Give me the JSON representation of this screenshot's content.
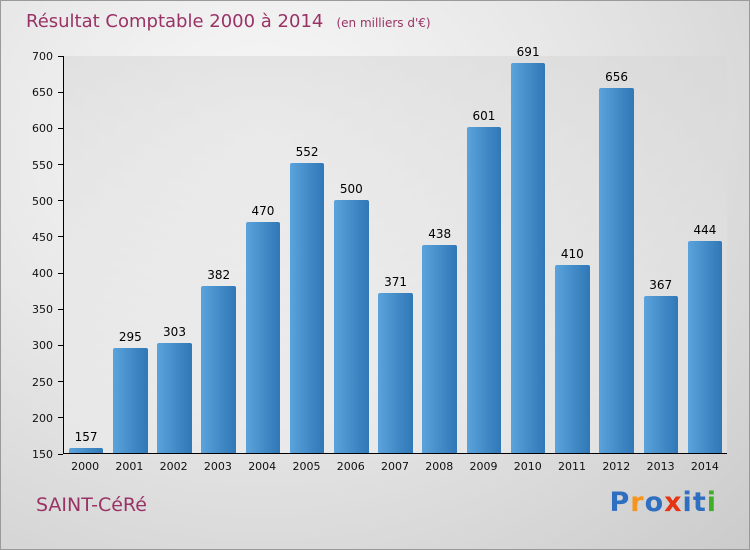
{
  "title": "Résultat Comptable 2000 à 2014",
  "subtitle": "(en milliers d'€)",
  "footer": {
    "place": "SAINT-CéRé",
    "logo_text": "Proxiti"
  },
  "logo": {
    "letters": [
      {
        "ch": "P",
        "color": "#2f6fc1"
      },
      {
        "ch": "r",
        "color": "#f7941d"
      },
      {
        "ch": "o",
        "color": "#2f6fc1"
      },
      {
        "ch": "x",
        "color": "#e63312"
      },
      {
        "ch": "i",
        "color": "#2f6fc1"
      },
      {
        "ch": "t",
        "color": "#2f6fc1"
      },
      {
        "ch": "i",
        "color": "#3fae2a"
      }
    ]
  },
  "colors": {
    "title": "#993366",
    "bar_light": "#5ba3dc",
    "bar_dark": "#2f77b6"
  },
  "chart_data": {
    "type": "bar",
    "title": "Résultat Comptable 2000 à 2014 (en milliers d'€)",
    "categories": [
      "2000",
      "2001",
      "2002",
      "2003",
      "2004",
      "2005",
      "2006",
      "2007",
      "2008",
      "2009",
      "2010",
      "2011",
      "2012",
      "2013",
      "2014"
    ],
    "values": [
      157,
      295,
      303,
      382,
      470,
      552,
      500,
      371,
      438,
      601,
      691,
      410,
      656,
      367,
      444
    ],
    "xlabel": "",
    "ylabel": "",
    "ylim": [
      150,
      700
    ],
    "ytick_step": 50,
    "grid": false,
    "legend": "none",
    "bar_color": "#3f8cc9",
    "value_labels": true
  }
}
